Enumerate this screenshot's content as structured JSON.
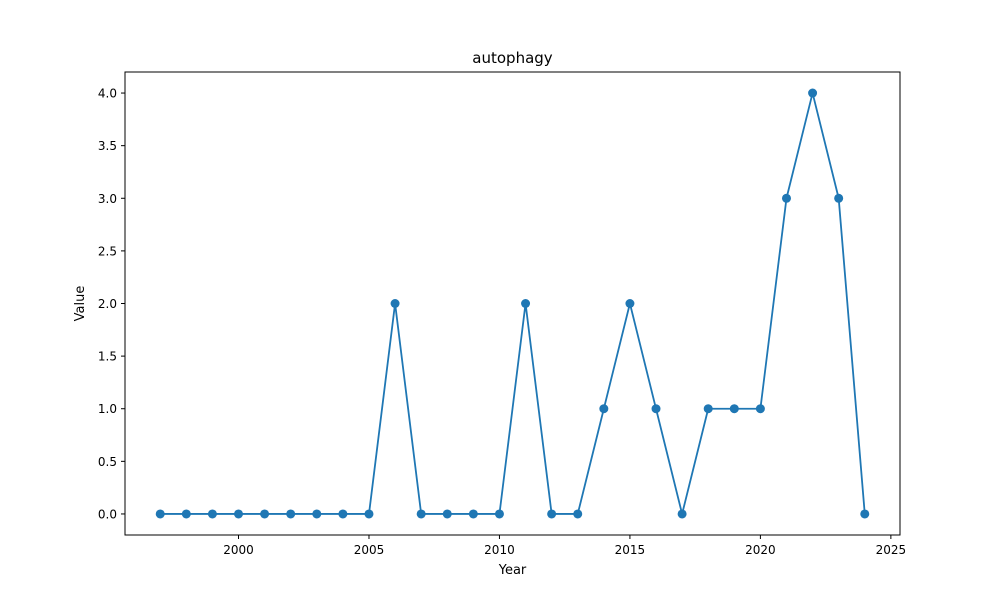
{
  "chart_data": {
    "type": "line",
    "title": "autophagy",
    "xlabel": "Year",
    "ylabel": "Value",
    "xlim": [
      1995.65,
      2025.35
    ],
    "ylim": [
      -0.2,
      4.2
    ],
    "xticks": [
      2000,
      2005,
      2010,
      2015,
      2020,
      2025
    ],
    "xtick_labels": [
      "2000",
      "2005",
      "2010",
      "2015",
      "2020",
      "2025"
    ],
    "yticks": [
      0.0,
      0.5,
      1.0,
      1.5,
      2.0,
      2.5,
      3.0,
      3.5,
      4.0
    ],
    "ytick_labels": [
      "0.0",
      "0.5",
      "1.0",
      "1.5",
      "2.0",
      "2.5",
      "3.0",
      "3.5",
      "4.0"
    ],
    "grid": false,
    "series": [
      {
        "color": "#1f77b4",
        "x": [
          1997,
          1998,
          1999,
          2000,
          2001,
          2002,
          2003,
          2004,
          2005,
          2006,
          2007,
          2008,
          2009,
          2010,
          2011,
          2012,
          2013,
          2014,
          2015,
          2016,
          2017,
          2018,
          2019,
          2020,
          2021,
          2022,
          2023,
          2024
        ],
        "values": [
          0,
          0,
          0,
          0,
          0,
          0,
          0,
          0,
          0,
          2,
          0,
          0,
          0,
          0,
          2,
          0,
          0,
          1,
          2,
          1,
          0,
          1,
          1,
          1,
          3,
          4,
          3,
          0
        ]
      }
    ]
  }
}
